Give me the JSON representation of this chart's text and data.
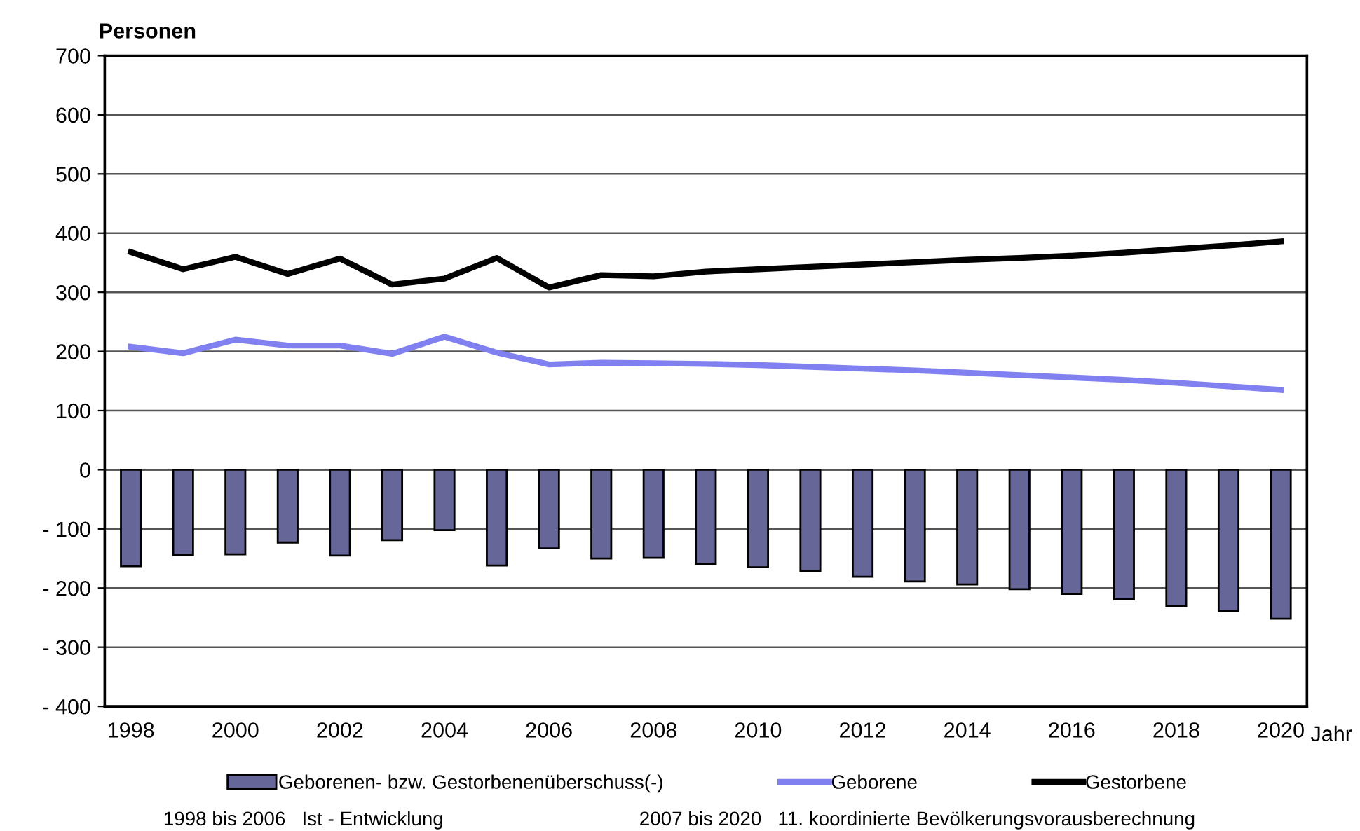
{
  "chart_data": {
    "type": "bar",
    "categories": [
      "1998",
      null,
      "2000",
      null,
      "2002",
      null,
      "2004",
      null,
      "2006",
      null,
      "2008",
      null,
      "2010",
      null,
      "2012",
      null,
      "2014",
      null,
      "2016",
      null,
      "2018",
      null,
      "2020"
    ],
    "series": [
      {
        "name": "Geborenen- bzw. Gestorbenenüberschuss(-)",
        "color": "#666699",
        "values": [
          -163,
          -144,
          -143,
          -123,
          -145,
          -119,
          -102,
          -162,
          -133,
          -150,
          -149,
          -159,
          -165,
          -171,
          -181,
          -189,
          -194,
          -202,
          -210,
          -219,
          -231,
          -239,
          -252
        ]
      },
      {
        "name": "Geborene",
        "type": "line",
        "color": "#8080f0",
        "values": [
          208,
          197,
          220,
          210,
          210,
          196,
          225,
          198,
          178,
          181,
          180,
          179,
          177,
          174,
          171,
          168,
          164,
          160,
          156,
          152,
          147,
          141,
          135
        ]
      },
      {
        "name": "Gestorbene",
        "type": "line",
        "color": "#000000",
        "values": [
          368,
          339,
          360,
          331,
          357,
          313,
          323,
          358,
          308,
          329,
          327,
          335,
          339,
          343,
          347,
          351,
          355,
          358,
          362,
          367,
          373,
          379,
          386
        ]
      }
    ],
    "ylabel": "Personen",
    "xlabel": "Jahr",
    "ylim": [
      -400,
      700
    ],
    "yticks": [
      {
        "value": -400,
        "label": "- 400"
      },
      {
        "value": -300,
        "label": "- 300"
      },
      {
        "value": -200,
        "label": "- 200"
      },
      {
        "value": -100,
        "label": "- 100"
      },
      0,
      100,
      200,
      300,
      400,
      500,
      600,
      700
    ],
    "grid": "y",
    "legend": "bottom",
    "marker": "none",
    "line_style": "solid",
    "annotations": [
      "1998 bis 2006   Ist - Entwicklung",
      "2007 bis 2020   11. koordinierte Bevölkerungsvorausberechnung"
    ]
  }
}
